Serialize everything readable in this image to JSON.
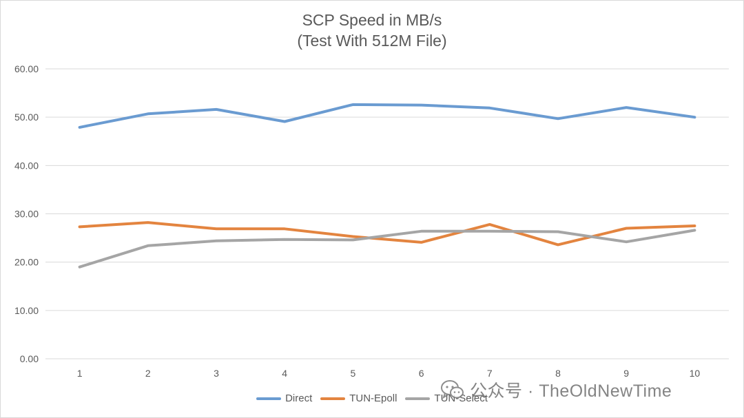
{
  "chart_data": {
    "type": "line",
    "title": "SCP Speed in MB/s",
    "subtitle": "(Test With 512M File)",
    "categories": [
      "1",
      "2",
      "3",
      "4",
      "5",
      "6",
      "7",
      "8",
      "9",
      "10"
    ],
    "y_ticks": [
      "0.00",
      "10.00",
      "20.00",
      "30.00",
      "40.00",
      "50.00",
      "60.00"
    ],
    "ylim": [
      0,
      60
    ],
    "grid": true,
    "legend_position": "bottom",
    "series": [
      {
        "name": "Direct",
        "color": "#6a9bd1",
        "values": [
          47.9,
          50.7,
          51.6,
          49.1,
          52.6,
          52.5,
          51.9,
          49.7,
          52.0,
          50.0
        ]
      },
      {
        "name": "TUN-Epoll",
        "color": "#e3843f",
        "values": [
          27.3,
          28.2,
          26.9,
          26.9,
          25.3,
          24.1,
          27.8,
          23.6,
          27.0,
          27.5
        ]
      },
      {
        "name": "TUN-Select",
        "color": "#a5a5a5",
        "values": [
          19.0,
          23.4,
          24.4,
          24.7,
          24.6,
          26.4,
          26.4,
          26.3,
          24.2,
          26.6
        ]
      }
    ]
  },
  "watermark": {
    "text": "公众号 · TheOldNewTime",
    "icon": "wechat-icon"
  }
}
